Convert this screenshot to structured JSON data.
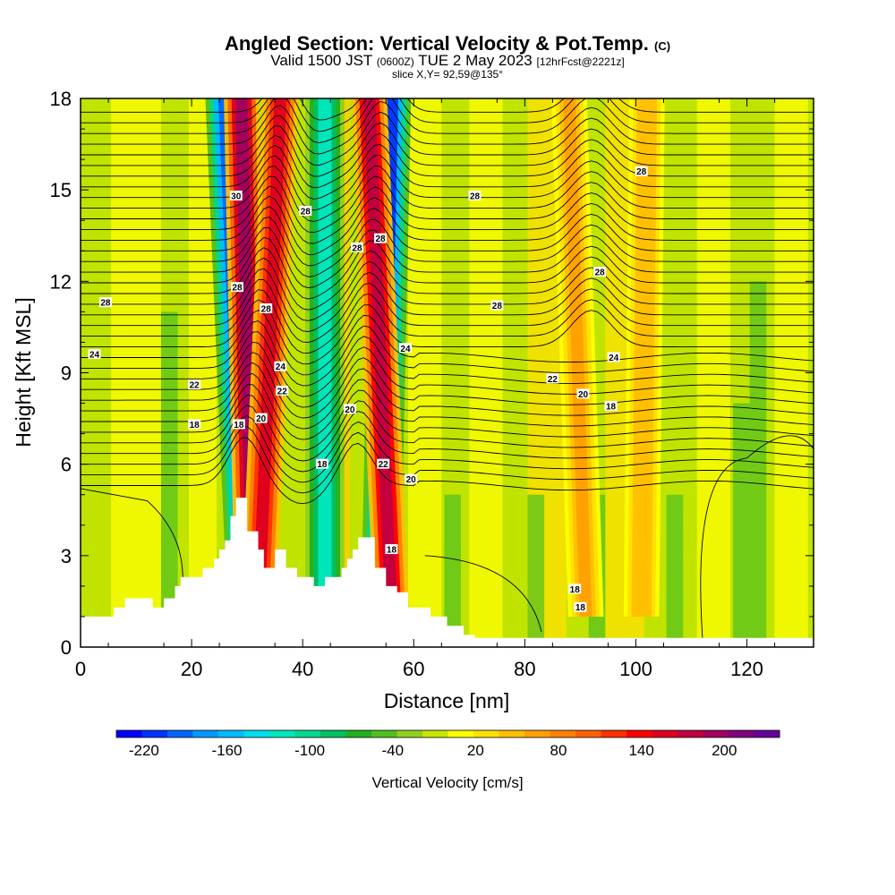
{
  "header": {
    "title": "Angled Section: Vertical Velocity & Pot.Temp.",
    "title_note": "(C)",
    "subtitle_main": "Valid 1500 JST",
    "subtitle_utc": "(0600Z)",
    "subtitle_date": "TUE 2 May 2023",
    "subtitle_fcst": "[12hrFcst@2221z]",
    "slice": "slice X,Y= 92,59@135°"
  },
  "chart_data": {
    "type": "heatmap",
    "xlabel": "Distance [nm]",
    "ylabel": "Height [Kft MSL]",
    "xlim": [
      0,
      132
    ],
    "ylim": [
      0,
      18
    ],
    "x_ticks": [
      "0",
      "20",
      "40",
      "60",
      "80",
      "100",
      "120"
    ],
    "y_ticks": [
      "0",
      "3",
      "6",
      "9",
      "12",
      "15",
      "18"
    ],
    "colorbar": {
      "label": "Vertical Velocity [cm/s]",
      "tick_labels": [
        "-220",
        "-160",
        "-100",
        "-40",
        "20",
        "80",
        "140",
        "200"
      ],
      "min": -240,
      "max": 240,
      "colors": [
        "#0000ff",
        "#0033ff",
        "#0066ff",
        "#0099ff",
        "#00bbff",
        "#00ddee",
        "#00e8c0",
        "#00d890",
        "#00c060",
        "#20b020",
        "#50c020",
        "#90d020",
        "#c8e600",
        "#ffff00",
        "#ffe000",
        "#ffc000",
        "#ffa000",
        "#ff8000",
        "#ff6000",
        "#ff3000",
        "#ff0000",
        "#dd0020",
        "#c00040",
        "#a00060",
        "#800080",
        "#660099"
      ]
    },
    "updraft_bands": [
      {
        "x_top": 29,
        "x_bottom": 31,
        "w": 200
      },
      {
        "x_top": 36,
        "x_bottom": 32,
        "w": 160
      },
      {
        "x_top": 52,
        "x_bottom": 56,
        "w": 180
      },
      {
        "x_top": 88,
        "x_bottom": 91,
        "w": 60
      },
      {
        "x_top": 102,
        "x_bottom": 101,
        "w": 50
      }
    ],
    "downdraft_bands": [
      {
        "x_top": 26,
        "x_bottom": 30,
        "w": -200
      },
      {
        "x_top": 44,
        "x_bottom": 44,
        "w": -120
      },
      {
        "x_top": 56,
        "x_bottom": 54,
        "w": -220
      }
    ],
    "contour_labels": [
      {
        "text": "30",
        "x": 28,
        "y": 14.8
      },
      {
        "text": "28",
        "x": 4.5,
        "y": 11.3
      },
      {
        "text": "28",
        "x": 28.2,
        "y": 11.8
      },
      {
        "text": "28",
        "x": 33.4,
        "y": 11.1
      },
      {
        "text": "28",
        "x": 40.5,
        "y": 14.3
      },
      {
        "text": "28",
        "x": 49.8,
        "y": 13.1
      },
      {
        "text": "28",
        "x": 54,
        "y": 13.4
      },
      {
        "text": "28",
        "x": 71,
        "y": 14.8
      },
      {
        "text": "28",
        "x": 75,
        "y": 11.2
      },
      {
        "text": "28",
        "x": 93.5,
        "y": 12.3
      },
      {
        "text": "28",
        "x": 101,
        "y": 15.6
      },
      {
        "text": "24",
        "x": 2.5,
        "y": 9.6
      },
      {
        "text": "24",
        "x": 36,
        "y": 9.2
      },
      {
        "text": "24",
        "x": 58.5,
        "y": 9.8
      },
      {
        "text": "24",
        "x": 96,
        "y": 9.5
      },
      {
        "text": "22",
        "x": 20.5,
        "y": 8.6
      },
      {
        "text": "22",
        "x": 36.3,
        "y": 8.4
      },
      {
        "text": "22",
        "x": 85,
        "y": 8.8
      },
      {
        "text": "22",
        "x": 54.5,
        "y": 6.0
      },
      {
        "text": "20",
        "x": 32.5,
        "y": 7.5
      },
      {
        "text": "20",
        "x": 48.5,
        "y": 7.8
      },
      {
        "text": "20",
        "x": 90.5,
        "y": 8.3
      },
      {
        "text": "20",
        "x": 59.5,
        "y": 5.5
      },
      {
        "text": "18",
        "x": 20.5,
        "y": 7.3
      },
      {
        "text": "18",
        "x": 28.5,
        "y": 7.3
      },
      {
        "text": "18",
        "x": 43.5,
        "y": 6.0
      },
      {
        "text": "18",
        "x": 95.5,
        "y": 7.9
      },
      {
        "text": "18",
        "x": 56,
        "y": 3.2
      },
      {
        "text": "18",
        "x": 89,
        "y": 1.9
      },
      {
        "text": "18",
        "x": 90,
        "y": 1.3
      }
    ]
  }
}
